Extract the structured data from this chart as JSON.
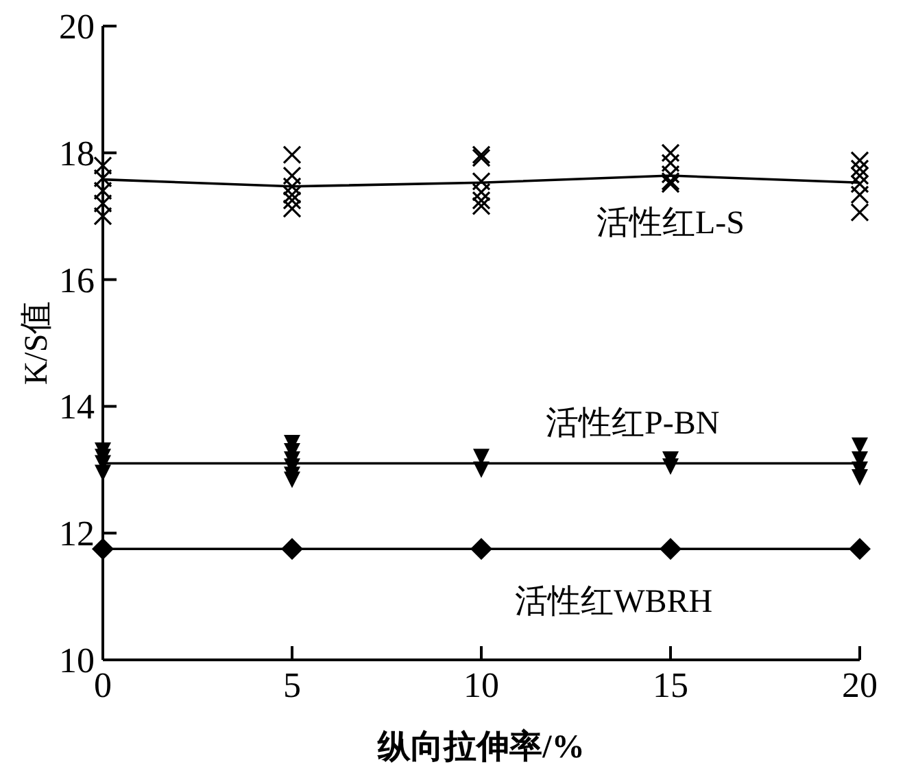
{
  "chart_data": {
    "type": "line",
    "xlabel": "纵向拉伸率/%",
    "ylabel": "K/S值",
    "xlim": [
      0,
      20
    ],
    "ylim": [
      10,
      20
    ],
    "xticks": [
      0,
      5,
      10,
      15,
      20
    ],
    "yticks": [
      10,
      12,
      14,
      16,
      18,
      20
    ],
    "series": [
      {
        "type": "line",
        "name": "活性红L-S",
        "marker": "none",
        "color": "#000000",
        "x": [
          0,
          5,
          10,
          15,
          20
        ],
        "values": [
          17.58,
          17.47,
          17.53,
          17.64,
          17.53
        ]
      },
      {
        "type": "scatter",
        "marker": "cross",
        "color": "#000000",
        "x": [
          0,
          0,
          0,
          0,
          0,
          5,
          5,
          5,
          5,
          5,
          5,
          10,
          10,
          10,
          10,
          10,
          10,
          15,
          15,
          15,
          15,
          15,
          20,
          20,
          20,
          20,
          20,
          20
        ],
        "values": [
          17.8,
          17.6,
          17.4,
          17.2,
          17.0,
          17.97,
          17.64,
          17.47,
          17.34,
          17.25,
          17.12,
          17.97,
          17.92,
          17.55,
          17.38,
          17.25,
          17.16,
          18.0,
          17.84,
          17.66,
          17.55,
          17.51,
          17.88,
          17.75,
          17.64,
          17.51,
          17.34,
          17.06
        ]
      },
      {
        "type": "line",
        "name": "活性红P-BN",
        "marker": "none",
        "color": "#000000",
        "x": [
          0,
          5,
          10,
          15,
          20
        ],
        "values": [
          13.1,
          13.1,
          13.1,
          13.1,
          13.1
        ]
      },
      {
        "type": "scatter",
        "marker": "triangle",
        "color": "#000000",
        "x": [
          0,
          0,
          0,
          0,
          5,
          5,
          5,
          5,
          5,
          5,
          10,
          10,
          15,
          15,
          20,
          20,
          20,
          20
        ],
        "values": [
          13.3,
          13.2,
          13.1,
          12.95,
          13.42,
          13.29,
          13.16,
          13.05,
          12.92,
          12.84,
          13.2,
          13.0,
          13.16,
          13.05,
          13.38,
          13.16,
          13.0,
          12.88
        ]
      },
      {
        "type": "line",
        "name": "活性红WBRH",
        "marker": "none",
        "color": "#000000",
        "x": [
          0,
          5,
          10,
          15,
          20
        ],
        "values": [
          11.75,
          11.75,
          11.75,
          11.75,
          11.75
        ]
      },
      {
        "type": "scatter",
        "marker": "diamond",
        "color": "#000000",
        "x": [
          0,
          5,
          10,
          15,
          20
        ],
        "values": [
          11.75,
          11.75,
          11.75,
          11.75,
          11.75
        ]
      }
    ]
  }
}
